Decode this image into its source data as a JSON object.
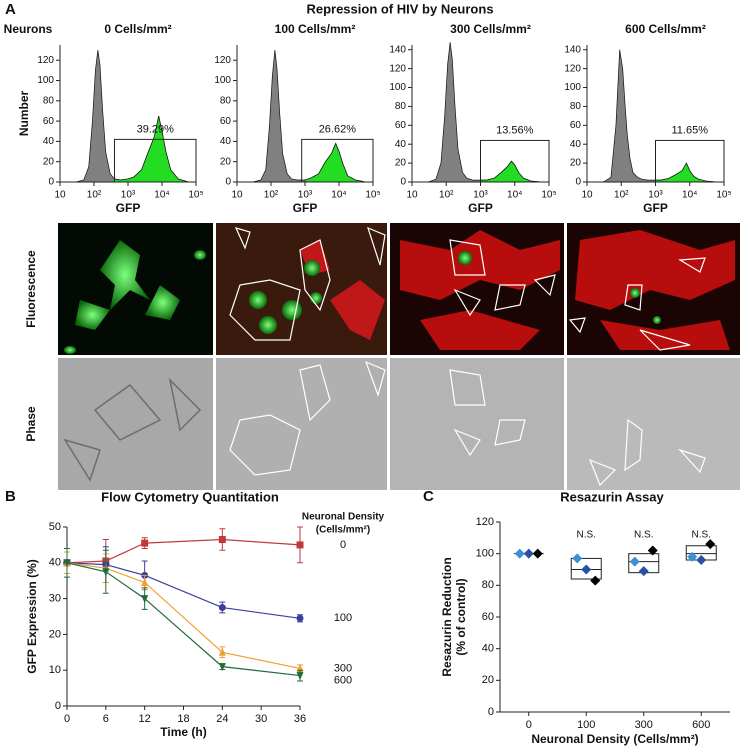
{
  "figure": {
    "title": "Repression of HIV by Neurons",
    "panel_labels": [
      "A",
      "B",
      "C"
    ],
    "neurons_label": "Neurons",
    "row_labels": [
      "Fluorescence",
      "Phase"
    ]
  },
  "chart_data": [
    {
      "type": "histogram",
      "title": "0 Cells/mm²",
      "xlabel": "GFP",
      "ylabel": "Number",
      "log_x": true,
      "x": [
        30,
        50,
        70,
        90,
        110,
        130,
        150,
        180,
        220,
        300,
        400,
        600,
        1000,
        1500,
        2500,
        4000,
        6000,
        8000,
        10000,
        13000,
        18000,
        30000,
        60000
      ],
      "values": [
        0,
        2,
        15,
        60,
        110,
        130,
        115,
        70,
        30,
        8,
        3,
        2,
        3,
        5,
        12,
        30,
        45,
        65,
        50,
        30,
        12,
        3,
        0
      ],
      "color": "#808080",
      "gate_color": "#22dd22",
      "gate": {
        "x": [
          400,
          100000
        ],
        "top": 42,
        "label": "39.29%"
      },
      "xlim": [
        10,
        100000
      ],
      "xticks": [
        10,
        {
          "value": 100,
          "label": "10²"
        },
        {
          "value": 1000,
          "label": "10³"
        },
        {
          "value": 10000,
          "label": "10⁴"
        },
        {
          "value": 100000,
          "label": "10⁵"
        }
      ],
      "ylim": [
        0,
        135
      ],
      "yticks": [
        0,
        20,
        40,
        60,
        80,
        100,
        120
      ]
    },
    {
      "type": "histogram",
      "title": "100 Cells/mm²",
      "xlabel": "GFP",
      "log_x": true,
      "x": [
        30,
        50,
        70,
        90,
        110,
        130,
        150,
        180,
        220,
        300,
        400,
        600,
        1000,
        1500,
        2500,
        4000,
        6000,
        8000,
        10000,
        13000,
        18000,
        30000,
        60000
      ],
      "values": [
        0,
        2,
        12,
        55,
        105,
        130,
        112,
        68,
        28,
        8,
        3,
        2,
        2,
        4,
        8,
        20,
        28,
        38,
        30,
        18,
        6,
        2,
        0
      ],
      "color": "#808080",
      "gate_color": "#22dd22",
      "gate": {
        "x": [
          800,
          100000
        ],
        "top": 42,
        "label": "26.62%"
      },
      "xlim": [
        10,
        100000
      ],
      "xticks": [
        10,
        {
          "value": 100,
          "label": "10²"
        },
        {
          "value": 1000,
          "label": "10³"
        },
        {
          "value": 10000,
          "label": "10⁴"
        },
        {
          "value": 100000,
          "label": "10⁵"
        }
      ],
      "ylim": [
        0,
        135
      ],
      "yticks": [
        0,
        20,
        40,
        60,
        80,
        100,
        120
      ]
    },
    {
      "type": "histogram",
      "title": "300 Cells/mm²",
      "xlabel": "GFP",
      "log_x": true,
      "x": [
        30,
        50,
        70,
        90,
        110,
        130,
        150,
        180,
        220,
        300,
        400,
        600,
        1000,
        1500,
        2500,
        4000,
        6000,
        8000,
        10000,
        13000,
        18000,
        30000,
        60000
      ],
      "values": [
        0,
        3,
        20,
        70,
        125,
        148,
        130,
        80,
        35,
        10,
        4,
        2,
        2,
        2,
        4,
        10,
        16,
        22,
        18,
        10,
        4,
        1,
        0
      ],
      "color": "#808080",
      "gate_color": "#22dd22",
      "gate": {
        "x": [
          1000,
          100000
        ],
        "top": 44,
        "label": "13.56%"
      },
      "xlim": [
        10,
        100000
      ],
      "xticks": [
        10,
        {
          "value": 100,
          "label": "10²"
        },
        {
          "value": 1000,
          "label": "10³"
        },
        {
          "value": 10000,
          "label": "10⁴"
        },
        {
          "value": 100000,
          "label": "10⁵"
        }
      ],
      "ylim": [
        0,
        145
      ],
      "yticks": [
        0,
        20,
        40,
        60,
        80,
        100,
        120,
        140
      ]
    },
    {
      "type": "histogram",
      "title": "600 Cells/mm²",
      "xlabel": "GFP",
      "log_x": true,
      "x": [
        30,
        50,
        70,
        90,
        110,
        130,
        150,
        180,
        220,
        300,
        400,
        600,
        1000,
        1500,
        2500,
        4000,
        6000,
        8000,
        10000,
        13000,
        18000,
        30000,
        60000
      ],
      "values": [
        0,
        5,
        60,
        140,
        120,
        80,
        50,
        25,
        10,
        5,
        3,
        2,
        2,
        2,
        4,
        8,
        12,
        20,
        12,
        6,
        3,
        1,
        0
      ],
      "color": "#808080",
      "gate_color": "#22dd22",
      "gate": {
        "x": [
          1000,
          100000
        ],
        "top": 44,
        "label": "11.65%"
      },
      "xlim": [
        10,
        100000
      ],
      "xticks": [
        10,
        {
          "value": 100,
          "label": "10²"
        },
        {
          "value": 1000,
          "label": "10³"
        },
        {
          "value": 10000,
          "label": "10⁴"
        },
        {
          "value": 100000,
          "label": "10⁵"
        }
      ],
      "ylim": [
        0,
        145
      ],
      "yticks": [
        0,
        20,
        40,
        60,
        80,
        100,
        120,
        140
      ]
    },
    {
      "type": "line",
      "title": "Flow Cytometry Quantitation",
      "xlabel": "Time (h)",
      "ylabel": "GFP Expression (%)",
      "legend_title": [
        "Neuronal Density",
        "(Cells/mm²)"
      ],
      "x": [
        0,
        6,
        12,
        24,
        36
      ],
      "series": [
        {
          "name": "0",
          "color": "#c0393b",
          "marker": "square",
          "values": [
            40,
            40.5,
            45.5,
            46.5,
            45
          ],
          "errors": [
            3,
            6,
            1.5,
            3,
            5
          ]
        },
        {
          "name": "100",
          "color": "#3a3f9e",
          "marker": "circle",
          "values": [
            40,
            39.5,
            36.5,
            27.5,
            24.5
          ],
          "errors": [
            3,
            5,
            4,
            1.5,
            1
          ]
        },
        {
          "name": "300",
          "color": "#f0a030",
          "marker": "triangle-up",
          "values": [
            40,
            38.5,
            34.5,
            15,
            10.5
          ],
          "errors": [
            3,
            4,
            2,
            1.5,
            1
          ]
        },
        {
          "name": "600",
          "color": "#1f6b3a",
          "marker": "triangle-down",
          "values": [
            40,
            37.5,
            30,
            11,
            8.5
          ],
          "errors": [
            4,
            6,
            3,
            0.8,
            1.5
          ]
        }
      ],
      "xlim": [
        0,
        36
      ],
      "xticks": [
        0,
        6,
        12,
        18,
        24,
        30,
        36
      ],
      "ylim": [
        0,
        50
      ],
      "yticks": [
        0,
        10,
        20,
        30,
        40,
        50
      ]
    },
    {
      "type": "box",
      "title": "Resazurin Assay",
      "xlabel": "Neuronal Density (Cells/mm²)",
      "ylabel": [
        "Resazurin Reduction",
        "(% of control)"
      ],
      "categories": [
        "0",
        "100",
        "300",
        "600"
      ],
      "boxes": [
        {
          "q1": 100,
          "median": 100,
          "q3": 100
        },
        {
          "q1": 84,
          "median": 90,
          "q3": 97
        },
        {
          "q1": 88,
          "median": 95,
          "q3": 100
        },
        {
          "q1": 96,
          "median": 100,
          "q3": 105
        }
      ],
      "points": {
        "colors": [
          "#3b8fd4",
          "#2b4fa3",
          "#000000"
        ],
        "values": [
          [
            100,
            100,
            100
          ],
          [
            97,
            90,
            83
          ],
          [
            95,
            89,
            102
          ],
          [
            98,
            96,
            106
          ]
        ]
      },
      "annotations": [
        {
          "x": "100",
          "text": "N.S."
        },
        {
          "x": "300",
          "text": "N.S."
        },
        {
          "x": "600",
          "text": "N.S."
        }
      ],
      "ylim": [
        0,
        120
      ],
      "yticks": [
        0,
        20,
        40,
        60,
        80,
        100,
        120
      ]
    }
  ]
}
